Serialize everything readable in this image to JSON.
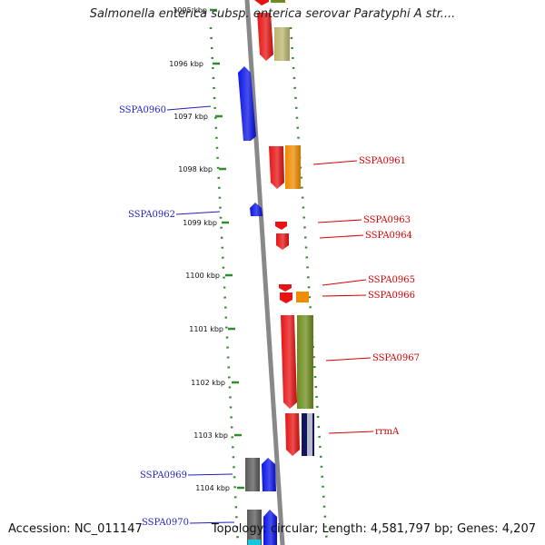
{
  "title": "Salmonella enterica subsp. enterica serovar Paratyphi A str....",
  "footer": {
    "accession": "Accession: NC_011147",
    "summary": "Topology: circular; Length: 4,581,797 bp; Genes: 4,207"
  },
  "axis": {
    "ticks": [
      "1095 kbp",
      "1096 kbp",
      "1097 kbp",
      "1098 kbp",
      "1099 kbp",
      "1100 kbp",
      "1101 kbp",
      "1102 kbp",
      "1103 kbp",
      "1104 kbp"
    ]
  },
  "colors": {
    "backbone": "#888888",
    "dotted_track": "#2e8b2e",
    "left_label": "#1f1fbf",
    "right_label": "#d40000",
    "blue": "#0a14e6",
    "red": "#e61414",
    "orange": "#f08c00",
    "olive": "#6e8c1e",
    "khaki": "#bdb46e",
    "gray": "#5a5a5a",
    "navy": "#14145a",
    "cyan": "#14c8dc"
  },
  "genes_left": [
    {
      "name": "SSPA0960"
    },
    {
      "name": "SSPA0962"
    },
    {
      "name": "SSPA0969"
    },
    {
      "name": "SSPA0970"
    }
  ],
  "genes_right": [
    {
      "name": "SSPA0961"
    },
    {
      "name": "SSPA0963"
    },
    {
      "name": "SSPA0964"
    },
    {
      "name": "SSPA0965"
    },
    {
      "name": "SSPA0966"
    },
    {
      "name": "SSPA0967"
    },
    {
      "name": "rrmA"
    }
  ]
}
